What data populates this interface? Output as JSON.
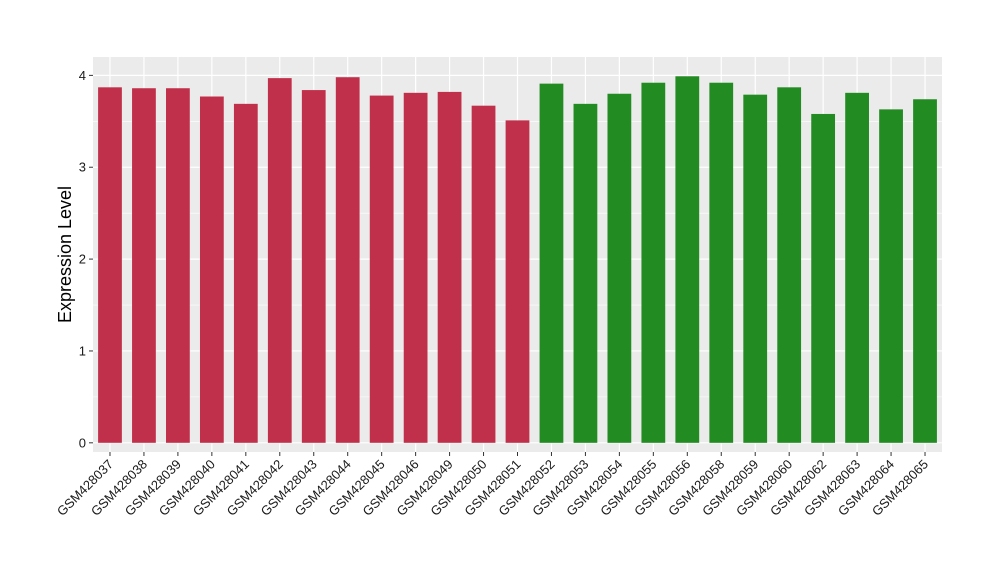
{
  "chart_data": {
    "type": "bar",
    "ylabel": "Expression Level",
    "xlabel": "",
    "title": "",
    "ylim": [
      -0.1,
      4.2
    ],
    "yticks": [
      0,
      1,
      2,
      3,
      4
    ],
    "grid": true,
    "categories": [
      "GSM428037",
      "GSM428038",
      "GSM428039",
      "GSM428040",
      "GSM428041",
      "GSM428042",
      "GSM428043",
      "GSM428044",
      "GSM428045",
      "GSM428046",
      "GSM428049",
      "GSM428050",
      "GSM428051",
      "GSM428052",
      "GSM428053",
      "GSM428054",
      "GSM428055",
      "GSM428056",
      "GSM428058",
      "GSM428059",
      "GSM428060",
      "GSM428062",
      "GSM428063",
      "GSM428064",
      "GSM428065"
    ],
    "values": [
      3.87,
      3.86,
      3.86,
      3.77,
      3.69,
      3.97,
      3.84,
      3.98,
      3.78,
      3.81,
      3.82,
      3.67,
      3.51,
      3.91,
      3.69,
      3.8,
      3.92,
      3.99,
      3.92,
      3.79,
      3.87,
      3.58,
      3.81,
      3.63,
      3.74
    ],
    "groups": [
      1,
      1,
      1,
      1,
      1,
      1,
      1,
      1,
      1,
      1,
      1,
      1,
      1,
      2,
      2,
      2,
      2,
      2,
      2,
      2,
      2,
      2,
      2,
      2,
      2
    ],
    "group_colors": {
      "1": "#c0304a",
      "2": "#228b22"
    },
    "panel_background": "#ebebeb",
    "grid_color": "#ffffff"
  }
}
